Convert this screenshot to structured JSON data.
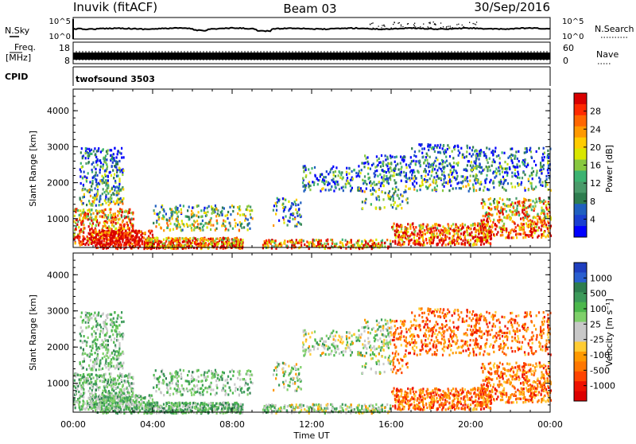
{
  "header": {
    "station": "Inuvik (fitACF)",
    "beam": "Beam 03",
    "date": "30/Sep/2016"
  },
  "strip_panels": {
    "nsky": {
      "label": "N.Sky",
      "right_label": "N.Search",
      "left_ticks": [
        "10^5",
        "10^0"
      ],
      "right_ticks": [
        "10^5",
        "10^0"
      ]
    },
    "freq": {
      "label_top": "Freq.",
      "label_bottom": "[MHz]",
      "left_ticks": [
        "18",
        "8"
      ],
      "right_ticks": [
        "60",
        "0"
      ],
      "right_label": "Nave"
    },
    "cpid": {
      "label": "CPID",
      "value": "twofsound 3503"
    }
  },
  "chart_data": [
    {
      "type": "heatmap",
      "name": "power-panel",
      "ylabel": "Slant Range [km]",
      "yticks": [
        1000,
        2000,
        3000,
        4000
      ],
      "ylim": [
        200,
        4600
      ],
      "xlim": [
        0,
        24
      ],
      "colorbar": {
        "label": "Power [dB]",
        "ticks": [
          "28",
          "24",
          "20",
          "16",
          "12",
          "8",
          "4"
        ],
        "colors": [
          "#d90000",
          "#ff2a00",
          "#ff6600",
          "#ff9900",
          "#ffcc00",
          "#d9e600",
          "#88c840",
          "#3cb371",
          "#4a9a6a",
          "#2e7d4f",
          "#1f5fbf",
          "#1a3fd0",
          "#0000ff"
        ]
      }
    },
    {
      "type": "heatmap",
      "name": "velocity-panel",
      "ylabel": "Slant Range [km]",
      "yticks": [
        1000,
        2000,
        3000,
        4000
      ],
      "ylim": [
        200,
        4600
      ],
      "xlim": [
        0,
        24
      ],
      "xlabel": "Time UT",
      "xticks": [
        "00:00",
        "04:00",
        "08:00",
        "12:00",
        "16:00",
        "20:00",
        "00:00"
      ],
      "colorbar": {
        "label": "Velocity [m s⁻¹]",
        "ticks": [
          "1000",
          "500",
          "100",
          "25",
          "-25",
          "-100",
          "-500",
          "-1000"
        ],
        "colors": [
          "#1f3fbf",
          "#2a5fd0",
          "#2e7d4f",
          "#3c9a5a",
          "#4cb84c",
          "#7fd06a",
          "#c8c8c8",
          "#c8c8c8",
          "#ffcc33",
          "#ff9900",
          "#ff7700",
          "#ff4400",
          "#ee1100",
          "#dd0000"
        ]
      }
    }
  ]
}
